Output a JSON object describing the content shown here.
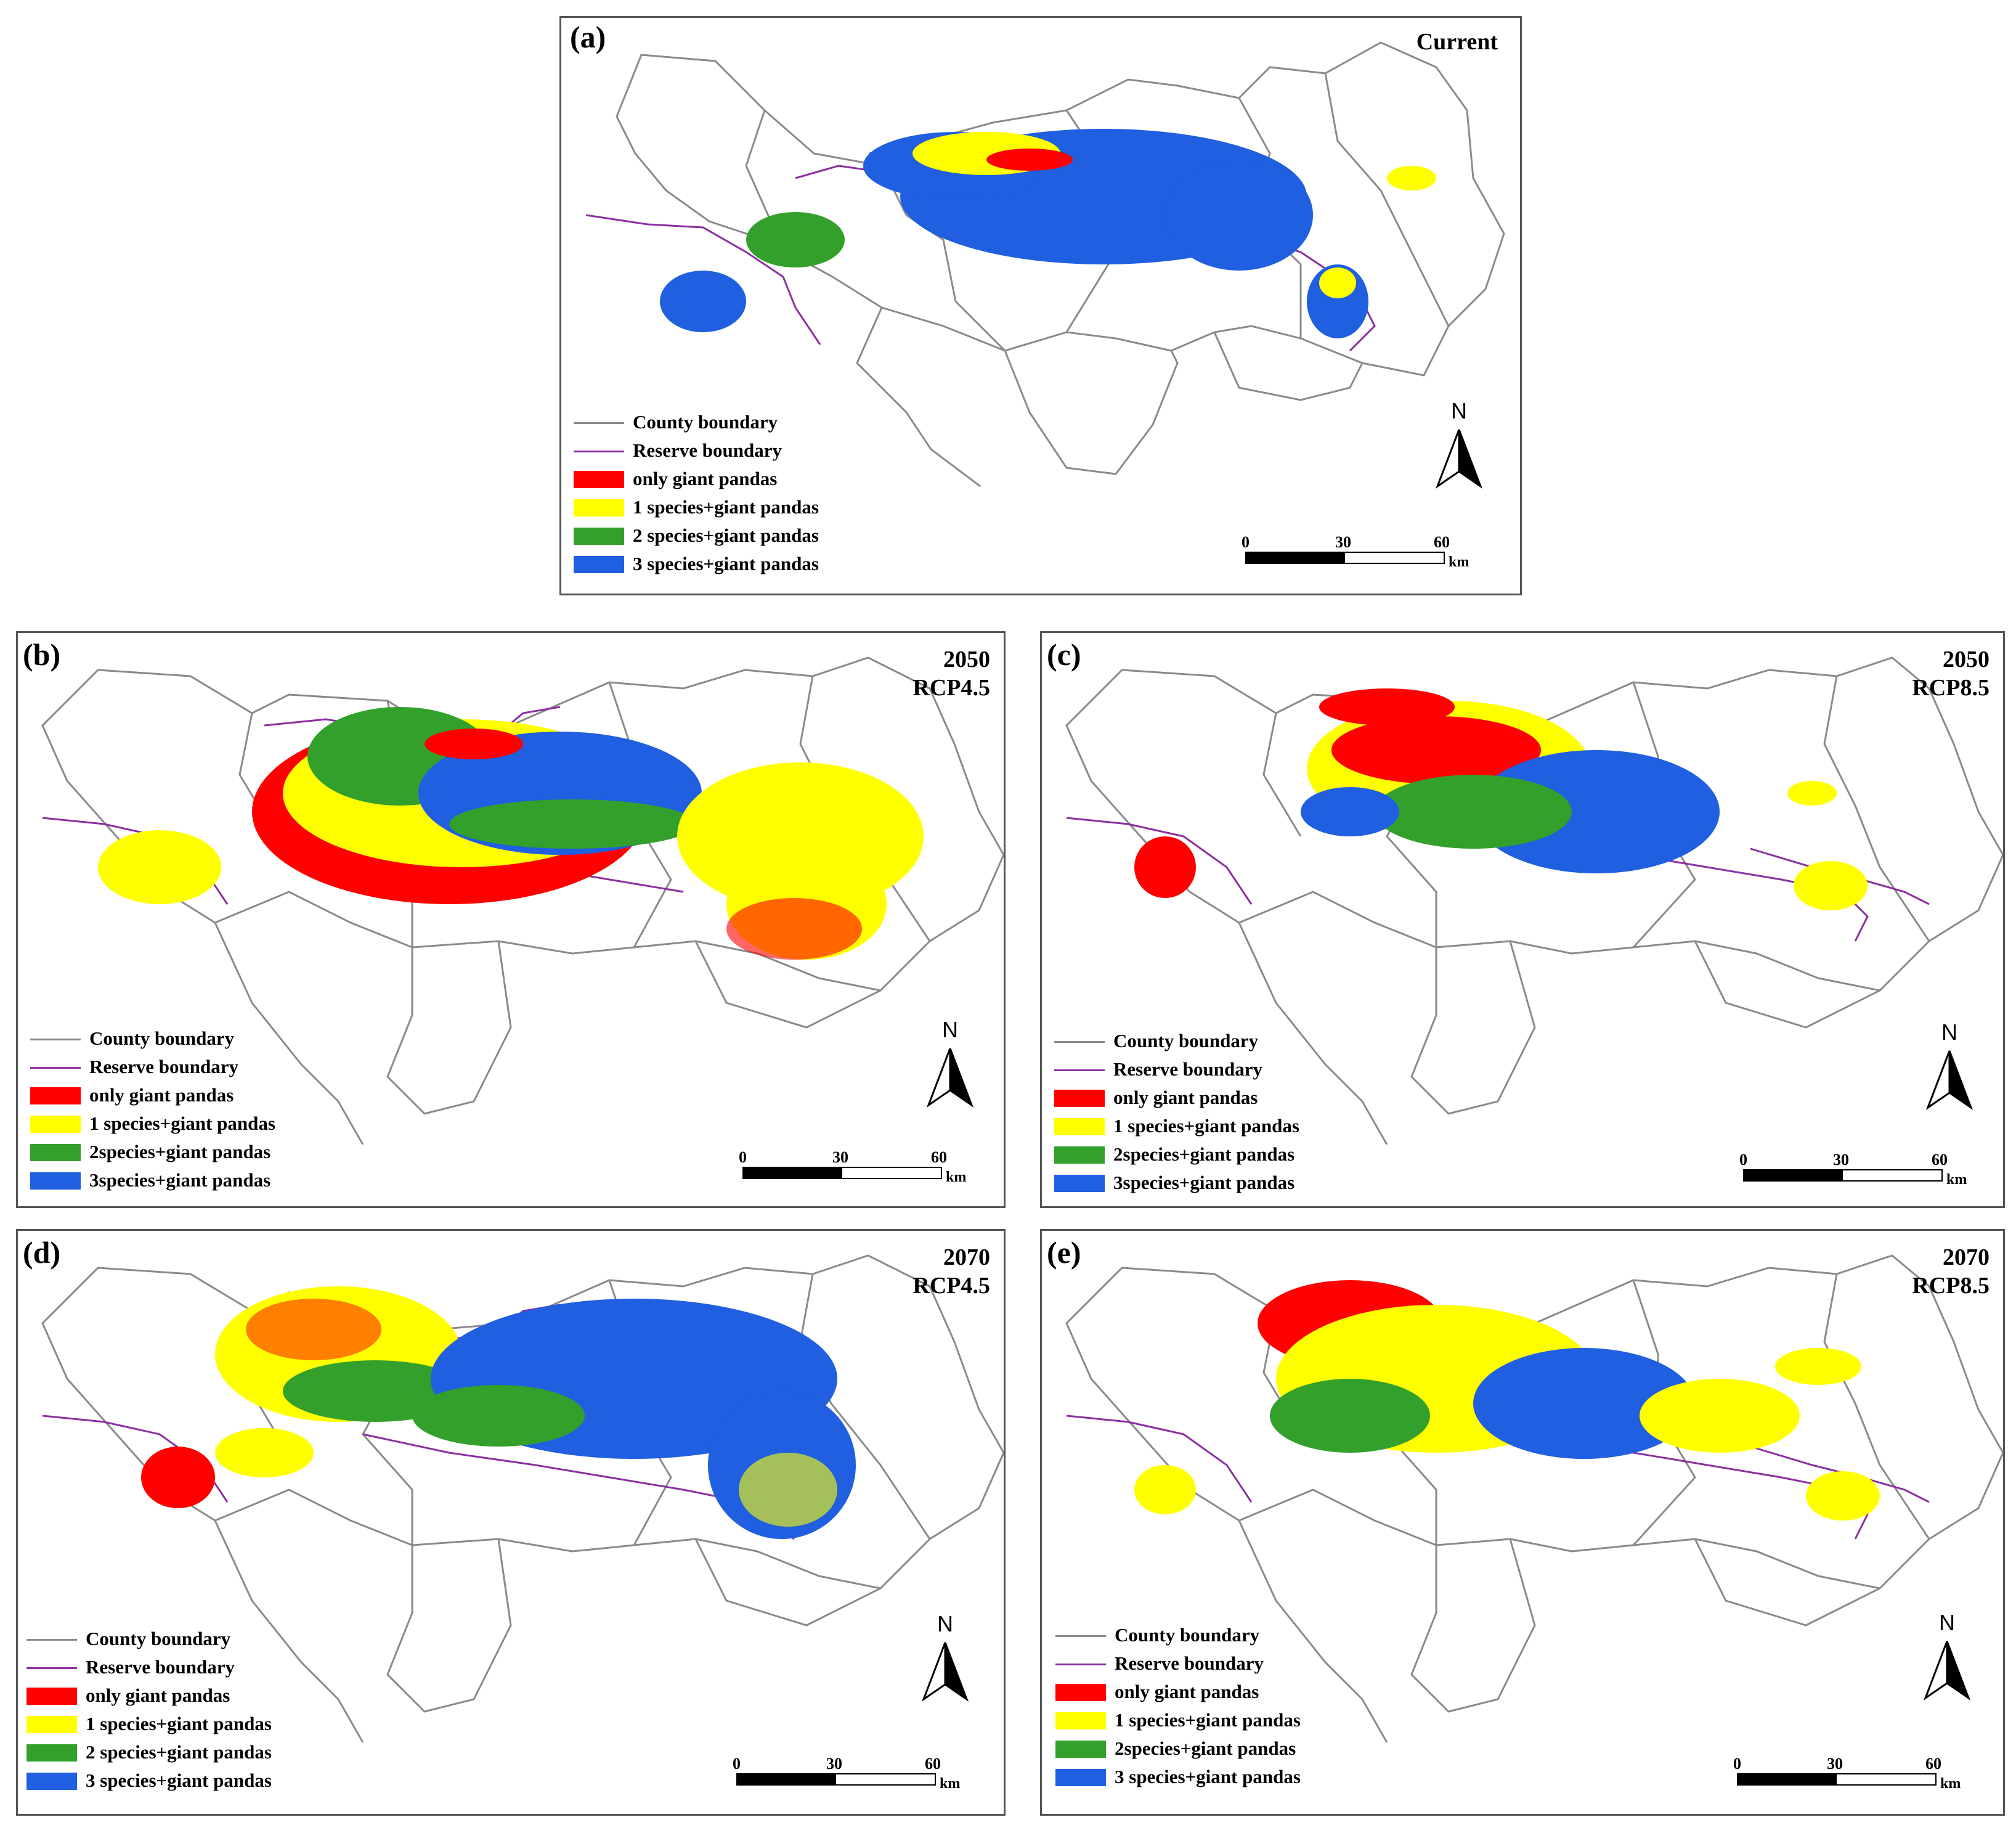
{
  "figure": {
    "panels": [
      {
        "id": "a",
        "label": "(a)",
        "title_lines": [
          "Current"
        ],
        "legend": [
          "County boundary",
          "Reserve boundary",
          "only giant pandas",
          "1 species+giant pandas",
          "2 species+giant pandas",
          "3 species+giant pandas"
        ]
      },
      {
        "id": "b",
        "label": "(b)",
        "title_lines": [
          "2050",
          "RCP4.5"
        ],
        "legend": [
          "County boundary",
          "Reserve boundary",
          "only giant pandas",
          "1 species+giant pandas",
          "2species+giant pandas",
          "3species+giant pandas"
        ]
      },
      {
        "id": "c",
        "label": "(c)",
        "title_lines": [
          "2050",
          "RCP8.5"
        ],
        "legend": [
          "County boundary",
          "Reserve boundary",
          "only giant pandas",
          "1 species+giant pandas",
          "2species+giant pandas",
          "3species+giant pandas"
        ]
      },
      {
        "id": "d",
        "label": "(d)",
        "title_lines": [
          "2070",
          "RCP4.5"
        ],
        "legend": [
          "County boundary",
          "Reserve boundary",
          "only giant pandas",
          "1 species+giant pandas",
          "2 species+giant pandas",
          "3 species+giant pandas"
        ]
      },
      {
        "id": "e",
        "label": "(e)",
        "title_lines": [
          "2070",
          "RCP8.5"
        ],
        "legend": [
          "County boundary",
          "Reserve boundary",
          "only giant pandas",
          "1 species+giant pandas",
          "2species+giant pandas",
          "3 species+giant pandas"
        ]
      }
    ],
    "north_label": "N",
    "scale": {
      "ticks": [
        "0",
        "30",
        "60"
      ],
      "unit": "km"
    },
    "colors": {
      "county_boundary": "#888888",
      "reserve_boundary": "#8b2fa0",
      "only_giant_pandas": "#ff0000",
      "one_species": "#ffff00",
      "two_species": "#33a02c",
      "three_species": "#1f5fe0"
    }
  }
}
